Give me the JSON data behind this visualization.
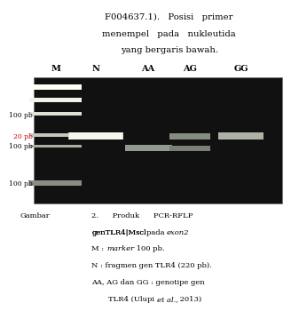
{
  "top_text_lines": [
    "F004637.1).   Posisi   primer",
    "menempel   pada   nukleutida",
    "yang bergaris bawah."
  ],
  "lane_labels": [
    "M",
    "N",
    "AA",
    "AG",
    "GG"
  ],
  "background_color": "#ffffff",
  "gel_bg": "#111111",
  "caption_line1_left": "Gambar",
  "caption_line1_right": "2.      Produk      PCR-RFLP",
  "caption_lines": [
    "genTLR4|Msclpada exon2",
    "M : marker 100 pb.",
    "N : fragmen gen TLR4 (220 pb).",
    "AA, AG dan GG : genotipe gen",
    "TLR4 (Ulupi et al., 2013)"
  ]
}
